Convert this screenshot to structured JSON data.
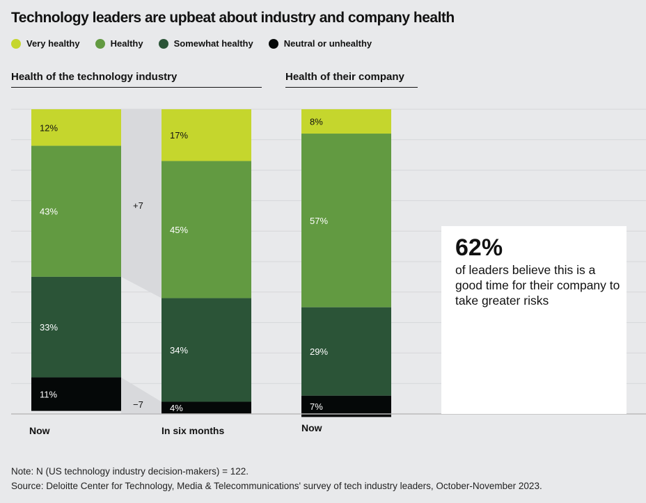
{
  "title": "Technology leaders are upbeat about industry and company health",
  "legend": [
    {
      "label": "Very healthy",
      "color": "#c5d62d"
    },
    {
      "label": "Healthy",
      "color": "#629a41"
    },
    {
      "label": "Somewhat healthy",
      "color": "#2b5437"
    },
    {
      "label": "Neutral or unhealthy",
      "color": "#050808"
    }
  ],
  "sections": {
    "industry": "Health of the technology industry",
    "company": "Health of their company"
  },
  "chart_data": {
    "type": "bar",
    "stacked": true,
    "categories": [
      "Now",
      "In six months",
      "Now"
    ],
    "groups": [
      "Health of the technology industry",
      "Health of the technology industry",
      "Health of their company"
    ],
    "series": [
      {
        "name": "Very healthy",
        "values": [
          12,
          17,
          8
        ],
        "labels": [
          "12%",
          "17%",
          "8%"
        ]
      },
      {
        "name": "Healthy",
        "values": [
          43,
          45,
          57
        ],
        "labels": [
          "43%",
          "45%",
          "57%"
        ]
      },
      {
        "name": "Somewhat healthy",
        "values": [
          33,
          34,
          29
        ],
        "labels": [
          "33%",
          "34%",
          "29%"
        ]
      },
      {
        "name": "Neutral or unhealthy",
        "values": [
          11,
          4,
          7
        ],
        "labels": [
          "11%",
          "4%",
          "7%"
        ]
      }
    ],
    "annotations": [
      "+7",
      "−7"
    ],
    "ylim": [
      0,
      100
    ],
    "grid": true
  },
  "callout": {
    "value": "62%",
    "text": "of leaders believe this is a good time for their company to take greater risks"
  },
  "note": "Note: N (US technology industry decision-makers) = 122.",
  "source": "Source: Deloitte Center for Technology, Media & Telecommunications' survey of tech industry leaders, October-November 2023."
}
